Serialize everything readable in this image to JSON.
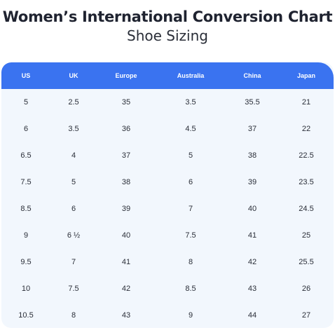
{
  "header": {
    "title": "Women’s International Conversion Chart",
    "subtitle": "Shoe Sizing"
  },
  "table": {
    "columns": [
      "US",
      "UK",
      "Europe",
      "Australia",
      "China",
      "Japan"
    ],
    "rows": [
      [
        "5",
        "2.5",
        "35",
        "3.5",
        "35.5",
        "21"
      ],
      [
        "6",
        "3.5",
        "36",
        "4.5",
        "37",
        "22"
      ],
      [
        "6.5",
        "4",
        "37",
        "5",
        "38",
        "22.5"
      ],
      [
        "7.5",
        "5",
        "38",
        "6",
        "39",
        "23.5"
      ],
      [
        "8.5",
        "6",
        "39",
        "7",
        "40",
        "24.5"
      ],
      [
        "9",
        "6 ½",
        "40",
        "7.5",
        "41",
        "25"
      ],
      [
        "9.5",
        "7",
        "41",
        "8",
        "42",
        "25.5"
      ],
      [
        "10",
        "7.5",
        "42",
        "8.5",
        "43",
        "26"
      ],
      [
        "10.5",
        "8",
        "43",
        "9",
        "44",
        "27"
      ]
    ]
  },
  "colors": {
    "header_bg": "#3a73f0",
    "body_bg": "#f2f7fd",
    "title_text": "#1f2330"
  }
}
